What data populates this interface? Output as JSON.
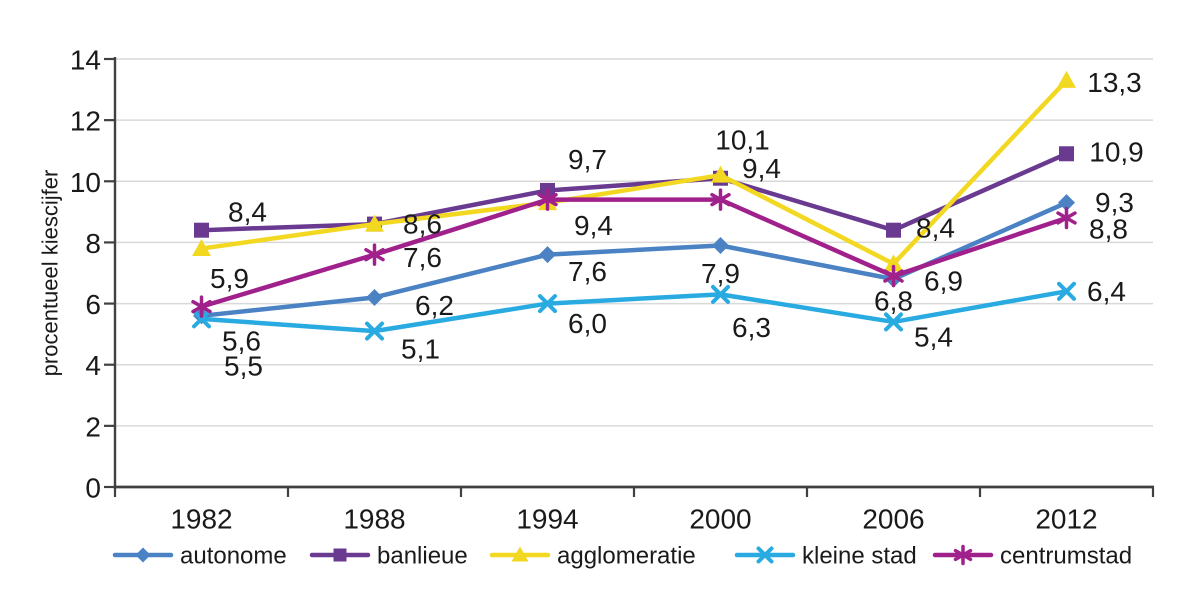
{
  "chart_data": {
    "type": "line",
    "title": "",
    "xlabel": "",
    "ylabel": "procentueel kiescijfer",
    "categories": [
      "1982",
      "1988",
      "1994",
      "2000",
      "2006",
      "2012"
    ],
    "ylim": [
      0,
      14
    ],
    "ytick_step": 2,
    "yticks": [
      "0",
      "2",
      "4",
      "6",
      "8",
      "10",
      "12",
      "14"
    ],
    "grid": true,
    "gridline_color": "#d9d9d9",
    "axis_color": "#404040",
    "text_color": "#1a1a1a",
    "legend_position": "bottom",
    "decimal_separator": ",",
    "series": [
      {
        "name": "autonome",
        "color": "#4a82c4",
        "marker": "diamond",
        "values": [
          5.6,
          6.2,
          7.6,
          7.9,
          6.8,
          9.3
        ],
        "labels": [
          "5,6",
          "6,2",
          "7,6",
          "7,9",
          "6,8",
          "9,3"
        ]
      },
      {
        "name": "banlieue",
        "color": "#6a3a91",
        "marker": "square",
        "values": [
          8.4,
          8.6,
          9.7,
          10.1,
          8.4,
          10.9
        ],
        "labels": [
          "8,4",
          null,
          "9,7",
          "10,1",
          "8,4",
          "10,9"
        ]
      },
      {
        "name": "agglomeratie",
        "color": "#f3d821",
        "marker": "triangle",
        "values": [
          7.8,
          8.6,
          9.3,
          10.2,
          7.3,
          13.3
        ],
        "labels": [
          null,
          "8,6",
          null,
          null,
          null,
          "13,3"
        ]
      },
      {
        "name": "kleine stad",
        "color": "#29abe2",
        "marker": "x",
        "values": [
          5.5,
          5.1,
          6.0,
          6.3,
          5.4,
          6.4
        ],
        "labels": [
          "5,5",
          "5,1",
          "6,0",
          "6,3",
          "5,4",
          "6,4"
        ]
      },
      {
        "name": "centrumstad",
        "color": "#a0218c",
        "marker": "asterisk",
        "values": [
          5.9,
          7.6,
          9.4,
          9.4,
          6.9,
          8.8
        ],
        "labels": [
          "5,9",
          "7,6",
          "9,4",
          "9,4",
          "6,9",
          "8,8"
        ]
      }
    ]
  }
}
